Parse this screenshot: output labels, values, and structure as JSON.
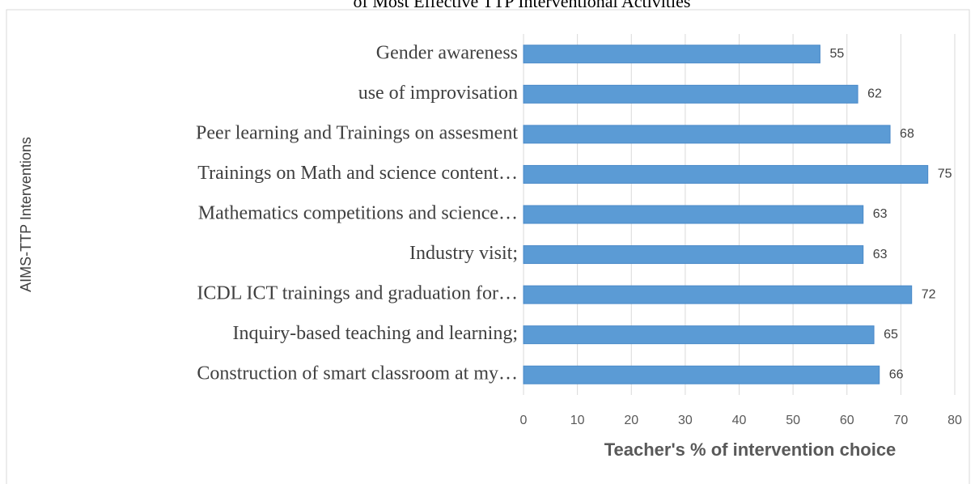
{
  "chart_data": {
    "type": "bar",
    "orientation": "horizontal",
    "title": "of Most Effective TTP Interventional Activities",
    "x_label": "Teacher's % of  intervention choice",
    "y_label": "AIMS-TTP Interventions",
    "categories": [
      "Gender awareness",
      "use of improvisation",
      "Peer learning  and Trainings on assesment",
      "Trainings on Math and science content…",
      "Mathematics competitions and science…",
      "Industry visit;",
      "ICDL  ICT trainings and graduation for…",
      "Inquiry-based teaching and learning;",
      "Construction of smart classroom at my…"
    ],
    "values": [
      55,
      62,
      68,
      75,
      63,
      63,
      72,
      65,
      66
    ],
    "color": "#5b9bd5",
    "xlim": [
      0,
      80
    ],
    "xticks": [
      0,
      10,
      20,
      30,
      40,
      50,
      60,
      70,
      80
    ],
    "grid": true,
    "data_labels": true
  }
}
